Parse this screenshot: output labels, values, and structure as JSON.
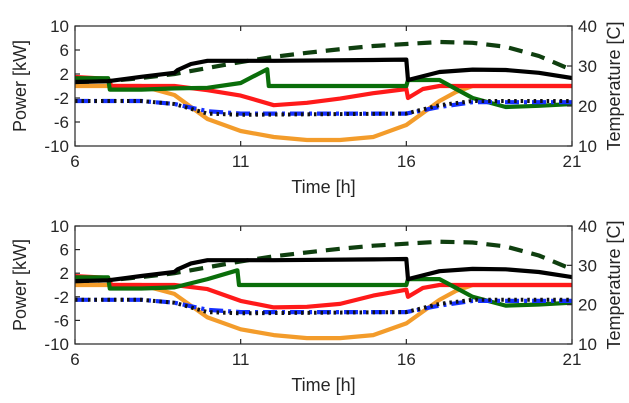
{
  "chart_data": [
    {
      "type": "line",
      "xlabel": "Time [h]",
      "ylabel": "Power [kW]",
      "ylabel_right": "Temperature [C]",
      "xlim": [
        6,
        21
      ],
      "ylim": [
        -10,
        10
      ],
      "ylim_right": [
        10,
        40
      ],
      "xticks": [
        6,
        11,
        16,
        21
      ],
      "yticks": [
        -10,
        -6,
        -2,
        2,
        6,
        10
      ],
      "yticks_right": [
        10,
        20,
        30,
        40
      ],
      "grid": false,
      "series": [
        {
          "axis": "left",
          "color": "#f39c2b",
          "style": "solid",
          "x": [
            6,
            7,
            8,
            9,
            10,
            11,
            12,
            13,
            14,
            15,
            16,
            16.5,
            17,
            17.5,
            18,
            19,
            20,
            21
          ],
          "y": [
            0,
            0,
            0,
            -1.5,
            -5.5,
            -7.5,
            -8.5,
            -9,
            -9,
            -8.5,
            -6.5,
            -4.5,
            -2.5,
            -1,
            0,
            0,
            0,
            0
          ]
        },
        {
          "axis": "left",
          "color": "#ff1a1a",
          "style": "solid",
          "x": [
            6,
            7,
            7.1,
            9,
            10,
            11,
            12,
            13,
            14,
            15,
            16,
            16.05,
            16.5,
            17,
            21
          ],
          "y": [
            1.5,
            1.2,
            0,
            0,
            -0.7,
            -1.6,
            -3.2,
            -2.8,
            -2.1,
            -1.2,
            -0.5,
            -2,
            -0.5,
            0,
            0
          ]
        },
        {
          "axis": "left",
          "color": "#0a6e0a",
          "style": "solid",
          "x": [
            6,
            7,
            7.05,
            8,
            9,
            10,
            11,
            11.8,
            11.85,
            16,
            16.05,
            17,
            17.5,
            18,
            19,
            20,
            21
          ],
          "y": [
            1.3,
            1.3,
            -0.6,
            -0.6,
            -0.4,
            -0.3,
            0.5,
            2.8,
            0,
            0,
            1,
            1,
            -0.5,
            -2,
            -3.5,
            -3.3,
            -3
          ]
        },
        {
          "axis": "left",
          "color": "#1530ff",
          "style": "dashdot",
          "x": [
            6,
            8,
            9,
            10,
            11,
            16,
            17,
            18,
            21
          ],
          "y": [
            -2.5,
            -2.5,
            -3,
            -4.2,
            -4.6,
            -4.6,
            -3.5,
            -2.7,
            -2.7
          ]
        },
        {
          "axis": "left",
          "color": "#111111",
          "style": "dotted",
          "x": [
            6,
            8,
            9,
            10,
            11,
            16,
            17,
            18,
            21
          ],
          "y": [
            -2.5,
            -2.5,
            -3,
            -4.6,
            -4.8,
            -4.6,
            -3.2,
            -2.5,
            -2.5
          ]
        },
        {
          "axis": "right",
          "color": "#0f3f0f",
          "style": "dashed",
          "x": [
            6,
            7,
            8,
            9,
            10,
            11,
            12,
            13,
            14,
            15,
            16,
            17,
            18,
            19,
            20,
            21
          ],
          "y": [
            26,
            26.2,
            27,
            28,
            29.5,
            31,
            32.3,
            33.3,
            34.2,
            35,
            35.5,
            36,
            35.8,
            34.8,
            32.5,
            29
          ]
        },
        {
          "axis": "right",
          "color": "#000000",
          "style": "solid",
          "x": [
            6,
            7,
            8,
            9,
            9.1,
            9.5,
            10,
            12,
            15,
            16,
            16.05,
            17,
            18,
            19,
            20,
            21
          ],
          "y": [
            26,
            26.2,
            27.3,
            28.3,
            29,
            30.5,
            31.3,
            31.3,
            31.5,
            31.6,
            26.5,
            28.5,
            29.1,
            29,
            28.3,
            27
          ]
        }
      ]
    },
    {
      "type": "line",
      "xlabel": "Time [h]",
      "ylabel": "Power [kW]",
      "ylabel_right": "Temperature [C]",
      "xlim": [
        6,
        21
      ],
      "ylim": [
        -10,
        10
      ],
      "ylim_right": [
        10,
        40
      ],
      "xticks": [
        6,
        11,
        16,
        21
      ],
      "yticks": [
        -10,
        -6,
        -2,
        2,
        6,
        10
      ],
      "yticks_right": [
        10,
        20,
        30,
        40
      ],
      "grid": false,
      "series": [
        {
          "axis": "left",
          "color": "#f39c2b",
          "style": "solid",
          "x": [
            6,
            7,
            8,
            9,
            10,
            11,
            12,
            13,
            14,
            15,
            16,
            16.5,
            17,
            17.5,
            18,
            19,
            20,
            21
          ],
          "y": [
            0,
            0,
            0,
            -1.5,
            -5.5,
            -7.5,
            -8.5,
            -9,
            -9,
            -8.5,
            -6.5,
            -4.5,
            -2.5,
            -1,
            0,
            0,
            0,
            0
          ]
        },
        {
          "axis": "left",
          "color": "#ff1a1a",
          "style": "solid",
          "x": [
            6,
            7,
            7.1,
            9,
            10,
            11,
            12,
            13,
            14,
            15,
            16,
            16.05,
            16.5,
            17,
            21
          ],
          "y": [
            1.5,
            1.2,
            0,
            0,
            -0.7,
            -2.7,
            -3.8,
            -3.7,
            -3.2,
            -1.8,
            -0.8,
            -2,
            -0.5,
            0,
            0
          ]
        },
        {
          "axis": "left",
          "color": "#0a6e0a",
          "style": "solid",
          "x": [
            6,
            7,
            7.05,
            8,
            9,
            10,
            10.9,
            10.95,
            16,
            16.05,
            17,
            17.5,
            18,
            19,
            20,
            21
          ],
          "y": [
            1.3,
            1.3,
            -0.6,
            -0.6,
            -0.4,
            1,
            2.5,
            0,
            0,
            1,
            1,
            -0.5,
            -2,
            -3.5,
            -3.3,
            -3
          ]
        },
        {
          "axis": "left",
          "color": "#1530ff",
          "style": "dashdot",
          "x": [
            6,
            8,
            9,
            10,
            11,
            16,
            17,
            18,
            21
          ],
          "y": [
            -2.5,
            -2.5,
            -3,
            -4.2,
            -4.6,
            -4.6,
            -3.5,
            -2.7,
            -2.7
          ]
        },
        {
          "axis": "left",
          "color": "#111111",
          "style": "dotted",
          "x": [
            6,
            8,
            9,
            10,
            11,
            16,
            17,
            18,
            21
          ],
          "y": [
            -2.5,
            -2.5,
            -3,
            -4.6,
            -4.8,
            -4.6,
            -3.2,
            -2.5,
            -2.5
          ]
        },
        {
          "axis": "right",
          "color": "#0f3f0f",
          "style": "dashed",
          "x": [
            6,
            7,
            8,
            9,
            10,
            11,
            12,
            13,
            14,
            15,
            16,
            17,
            18,
            19,
            20,
            21
          ],
          "y": [
            26,
            26.2,
            27,
            28,
            29.5,
            31,
            32.3,
            33.3,
            34.2,
            35,
            35.5,
            36,
            35.8,
            34.8,
            32.5,
            29
          ]
        },
        {
          "axis": "right",
          "color": "#000000",
          "style": "solid",
          "x": [
            6,
            7,
            8,
            9,
            9.1,
            9.5,
            10,
            12,
            15,
            16,
            16.05,
            17,
            18,
            19,
            20,
            21
          ],
          "y": [
            26,
            26.2,
            27.3,
            28.3,
            29,
            30.5,
            31.3,
            31.3,
            31.5,
            31.6,
            26.5,
            28.5,
            29.1,
            29,
            28.3,
            27
          ]
        }
      ]
    }
  ]
}
